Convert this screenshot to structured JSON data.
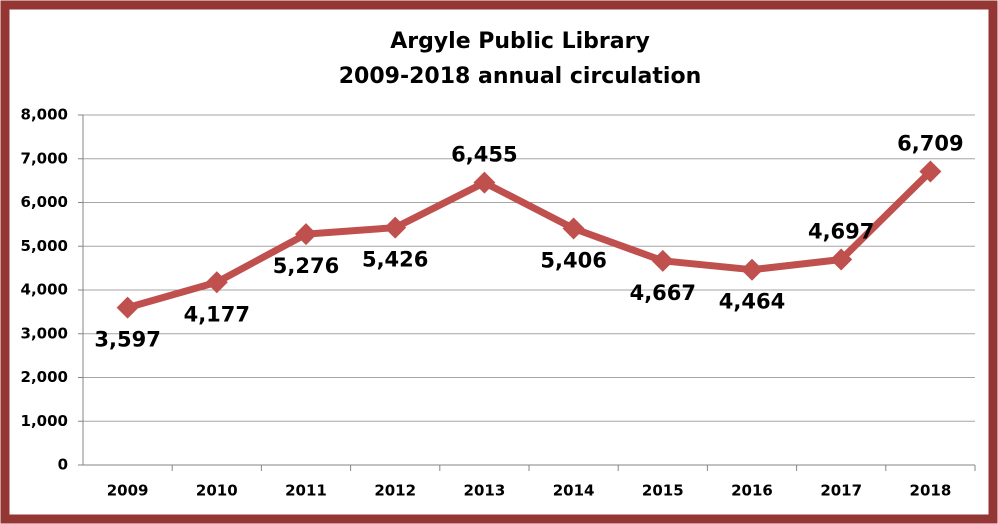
{
  "chart_data": {
    "type": "line",
    "title": [
      "Argyle Public Library",
      "2009-2018 annual circulation"
    ],
    "categories": [
      "2009",
      "2010",
      "2011",
      "2012",
      "2013",
      "2014",
      "2015",
      "2016",
      "2017",
      "2018"
    ],
    "series": [
      {
        "color": "#c0504d",
        "values": [
          3597,
          4177,
          5276,
          5426,
          6455,
          5406,
          4667,
          4464,
          4697,
          6709
        ],
        "value_labels": [
          "3,597",
          "4,177",
          "5,276",
          "5,426",
          "6,455",
          "5,406",
          "4,667",
          "4,464",
          "4,697",
          "6,709"
        ]
      }
    ],
    "ylim": [
      0,
      8000
    ],
    "yticks": [
      0,
      {
        "value": 1000,
        "label": "1,000"
      },
      {
        "value": 2000,
        "label": "2,000"
      },
      {
        "value": 3000,
        "label": "3,000"
      },
      {
        "value": 4000,
        "label": "4,000"
      },
      {
        "value": 5000,
        "label": "5,000"
      },
      {
        "value": 6000,
        "label": "6,000"
      },
      {
        "value": 7000,
        "label": "7,000"
      },
      {
        "value": 8000,
        "label": "8,000"
      }
    ],
    "grid": true
  }
}
